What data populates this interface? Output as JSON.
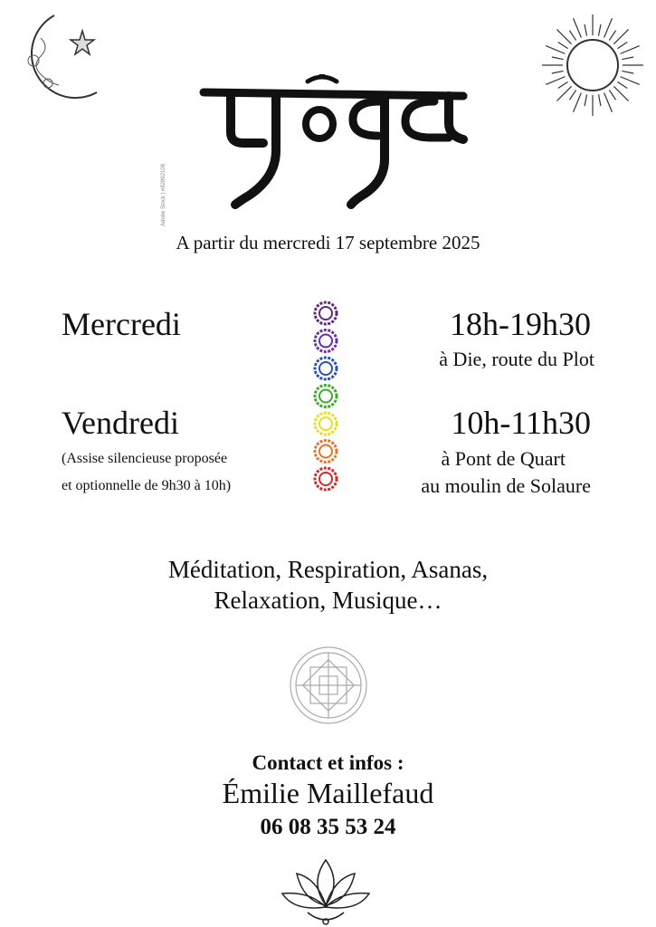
{
  "logo": {
    "text": "yoga",
    "watermark": "Adobe Stock | #82892108"
  },
  "start_date": "A partir du mercredi 17 septembre 2025",
  "sessions": [
    {
      "day": "Mercredi",
      "time": "18h-19h30",
      "place_lines": [
        "à Die, route du Plot"
      ]
    },
    {
      "day": "Vendredi",
      "note_lines": [
        "(Assise silencieuse proposée",
        "et optionnelle de 9h30 à 10h)"
      ],
      "time": "10h-11h30",
      "place_lines": [
        "à Pont de Quart",
        "au moulin de Solaure"
      ]
    }
  ],
  "chakra_colors": [
    "#5b2a7a",
    "#6a2fa8",
    "#2a4fb8",
    "#3faa2a",
    "#e6e01a",
    "#e8742a",
    "#d8282a"
  ],
  "activities": [
    "Méditation, Respiration, Asanas,",
    "Relaxation, Musique…"
  ],
  "contact": {
    "label": "Contact et infos :",
    "name": "Émilie Maillefaud",
    "phone": "06 08 35 53 24"
  }
}
